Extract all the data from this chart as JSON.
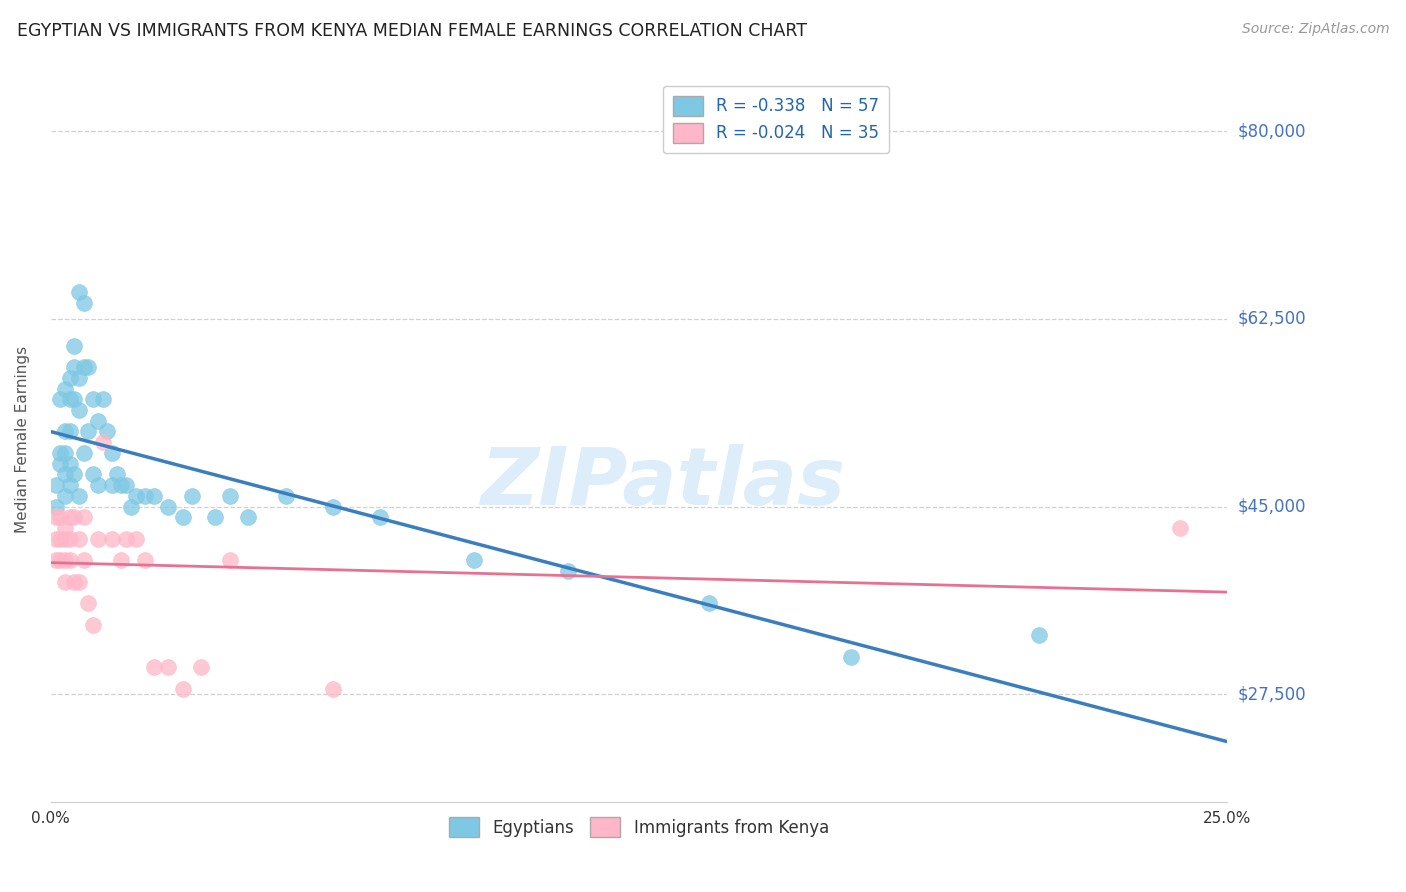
{
  "title": "EGYPTIAN VS IMMIGRANTS FROM KENYA MEDIAN FEMALE EARNINGS CORRELATION CHART",
  "source": "Source: ZipAtlas.com",
  "ylabel": "Median Female Earnings",
  "xlim": [
    0.0,
    0.25
  ],
  "ylim": [
    17500,
    85000
  ],
  "yticks": [
    27500,
    45000,
    62500,
    80000
  ],
  "ytick_labels": [
    "$27,500",
    "$45,000",
    "$62,500",
    "$80,000"
  ],
  "xticks": [
    0.0,
    0.05,
    0.1,
    0.15,
    0.2,
    0.25
  ],
  "xtick_labels": [
    "0.0%",
    "",
    "",
    "",
    "",
    "25.0%"
  ],
  "background_color": "#ffffff",
  "grid_color": "#cccccc",
  "watermark": "ZIPatlas",
  "legend_R1": "R = -0.338",
  "legend_N1": "N = 57",
  "legend_R2": "R = -0.024",
  "legend_N2": "N = 35",
  "blue_color": "#7ec8e3",
  "pink_color": "#ffb6c8",
  "blue_line_color": "#3a7ebf",
  "pink_line_color": "#e87090",
  "title_color": "#222222",
  "axis_label_color": "#555555",
  "right_label_color": "#4472c4",
  "egyptians_x": [
    0.001,
    0.001,
    0.002,
    0.002,
    0.002,
    0.003,
    0.003,
    0.003,
    0.003,
    0.003,
    0.004,
    0.004,
    0.004,
    0.004,
    0.004,
    0.005,
    0.005,
    0.005,
    0.005,
    0.006,
    0.006,
    0.006,
    0.006,
    0.007,
    0.007,
    0.007,
    0.008,
    0.008,
    0.009,
    0.009,
    0.01,
    0.01,
    0.011,
    0.012,
    0.013,
    0.013,
    0.014,
    0.015,
    0.016,
    0.017,
    0.018,
    0.02,
    0.022,
    0.025,
    0.028,
    0.03,
    0.035,
    0.038,
    0.042,
    0.05,
    0.06,
    0.07,
    0.09,
    0.11,
    0.14,
    0.17,
    0.21
  ],
  "egyptians_y": [
    47000,
    45000,
    55000,
    50000,
    49000,
    56000,
    52000,
    50000,
    48000,
    46000,
    57000,
    55000,
    52000,
    49000,
    47000,
    60000,
    58000,
    55000,
    48000,
    65000,
    57000,
    54000,
    46000,
    64000,
    58000,
    50000,
    58000,
    52000,
    55000,
    48000,
    53000,
    47000,
    55000,
    52000,
    50000,
    47000,
    48000,
    47000,
    47000,
    45000,
    46000,
    46000,
    46000,
    45000,
    44000,
    46000,
    44000,
    46000,
    44000,
    46000,
    45000,
    44000,
    40000,
    39000,
    36000,
    31000,
    33000
  ],
  "kenya_x": [
    0.001,
    0.001,
    0.001,
    0.002,
    0.002,
    0.002,
    0.003,
    0.003,
    0.003,
    0.003,
    0.004,
    0.004,
    0.004,
    0.005,
    0.005,
    0.006,
    0.006,
    0.007,
    0.007,
    0.008,
    0.009,
    0.01,
    0.011,
    0.013,
    0.015,
    0.016,
    0.018,
    0.02,
    0.022,
    0.025,
    0.028,
    0.032,
    0.038,
    0.06,
    0.24
  ],
  "kenya_y": [
    44000,
    42000,
    40000,
    44000,
    42000,
    40000,
    43000,
    42000,
    40000,
    38000,
    44000,
    42000,
    40000,
    44000,
    38000,
    42000,
    38000,
    44000,
    40000,
    36000,
    34000,
    42000,
    51000,
    42000,
    40000,
    42000,
    42000,
    40000,
    30000,
    30000,
    28000,
    30000,
    40000,
    28000,
    43000
  ]
}
